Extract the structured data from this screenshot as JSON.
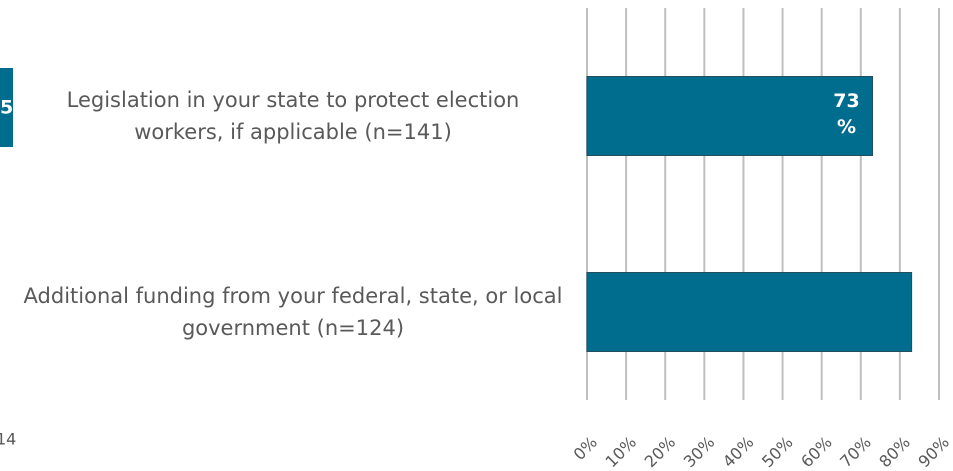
{
  "chart_data": {
    "type": "bar",
    "orientation": "horizontal",
    "categories": [
      "Legislation in your state to protect election\nworkers, if applicable (n=141)",
      "Additional funding from your federal, state, or local\ngovernment (n=124)"
    ],
    "values": [
      73,
      83
    ],
    "value_labels": [
      "73\n%",
      null
    ],
    "color": "#006d8f",
    "xlim": [
      0,
      90
    ],
    "xticks": [
      {
        "value": 0,
        "label": "0%"
      },
      {
        "value": 10,
        "label": "10%"
      },
      {
        "value": 20,
        "label": "20%"
      },
      {
        "value": 30,
        "label": "30%"
      },
      {
        "value": 40,
        "label": "40%"
      },
      {
        "value": 50,
        "label": "50%"
      },
      {
        "value": 60,
        "label": "60%"
      },
      {
        "value": 70,
        "label": "70%"
      },
      {
        "value": 80,
        "label": "80%"
      },
      {
        "value": 90,
        "label": "90%"
      }
    ],
    "grid": true
  },
  "fragments": [
    "5",
    "14"
  ]
}
